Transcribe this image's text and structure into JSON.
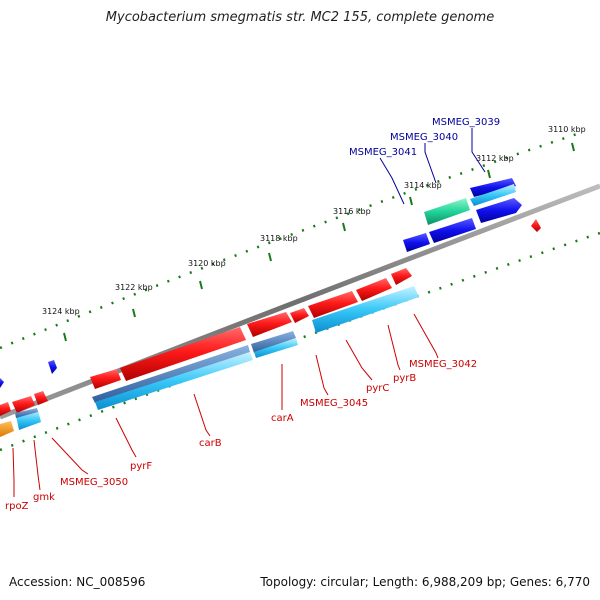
{
  "title": "Mycobacterium smegmatis str. MC2 155, complete genome",
  "footer": {
    "accession": "Accession: NC_008596",
    "topology": "Topology: circular; Length: 6,988,209 bp; Genes: 6,770"
  },
  "colors": {
    "backbone": "#7a7a7a",
    "forward_gene": "#e00000",
    "reverse_gene": "#0000e0",
    "forward_cds_shadow": "#3aa0e0",
    "forward_label": "#cc0000",
    "reverse_label": "#000099",
    "ticks": "#1a7a1a"
  },
  "scale": {
    "unit": "kbp",
    "tick_labels": [
      "3110 kbp",
      "3112 kbp",
      "3114 kbp",
      "3116 kbp",
      "3118 kbp",
      "3120 kbp",
      "3122 kbp",
      "3124 kbp"
    ]
  },
  "genes_reverse_labels": [
    "MSMEG_3039",
    "MSMEG_3040",
    "MSMEG_3041"
  ],
  "genes_forward_labels": [
    "MSMEG_3042",
    "pyrB",
    "pyrC",
    "MSMEG_3045",
    "carA",
    "carB",
    "pyrF",
    "MSMEG_3050",
    "gmk",
    "rpoZ"
  ]
}
